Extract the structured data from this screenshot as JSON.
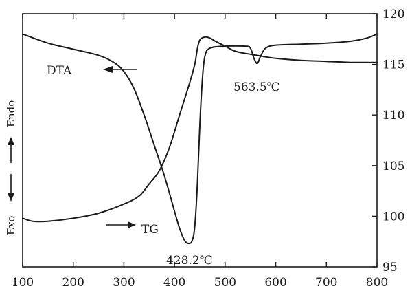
{
  "chart_data": {
    "type": "line",
    "title": "",
    "xlabel": "",
    "ylabel": "",
    "xlim": [
      100,
      800
    ],
    "x_ticks": [
      100,
      200,
      300,
      400,
      500,
      600,
      700,
      800
    ],
    "y_right_lim": [
      95,
      120
    ],
    "y_right_ticks": [
      95,
      100,
      105,
      110,
      115,
      120
    ],
    "left_axis_labels": {
      "endo": "Endo",
      "exo": "Exo"
    },
    "series": [
      {
        "name": "DTA",
        "axis": "left",
        "points": [
          [
            100,
            118.0
          ],
          [
            150,
            117.1
          ],
          [
            200,
            116.5
          ],
          [
            250,
            115.9
          ],
          [
            280,
            115.2
          ],
          [
            300,
            114.3
          ],
          [
            320,
            112.6
          ],
          [
            340,
            110.0
          ],
          [
            360,
            107.0
          ],
          [
            380,
            104.0
          ],
          [
            400,
            100.5
          ],
          [
            410,
            98.8
          ],
          [
            420,
            97.6
          ],
          [
            428.2,
            97.3
          ],
          [
            435,
            97.6
          ],
          [
            440,
            99.0
          ],
          [
            445,
            103.0
          ],
          [
            450,
            109.0
          ],
          [
            455,
            113.5
          ],
          [
            460,
            115.8
          ],
          [
            470,
            116.6
          ],
          [
            500,
            116.8
          ],
          [
            540,
            116.8
          ],
          [
            550,
            116.6
          ],
          [
            557,
            115.6
          ],
          [
            563.5,
            115.1
          ],
          [
            570,
            115.8
          ],
          [
            580,
            116.6
          ],
          [
            600,
            116.9
          ],
          [
            650,
            117.0
          ],
          [
            700,
            117.1
          ],
          [
            750,
            117.3
          ],
          [
            780,
            117.6
          ],
          [
            800,
            118.0
          ]
        ]
      },
      {
        "name": "TG",
        "axis": "right",
        "points": [
          [
            100,
            99.8
          ],
          [
            120,
            99.5
          ],
          [
            150,
            99.5
          ],
          [
            200,
            99.8
          ],
          [
            250,
            100.3
          ],
          [
            300,
            101.2
          ],
          [
            330,
            102.0
          ],
          [
            350,
            103.2
          ],
          [
            370,
            104.5
          ],
          [
            390,
            106.8
          ],
          [
            410,
            110.0
          ],
          [
            430,
            113.2
          ],
          [
            440,
            115.0
          ],
          [
            445,
            116.5
          ],
          [
            450,
            117.4
          ],
          [
            460,
            117.7
          ],
          [
            470,
            117.6
          ],
          [
            480,
            117.3
          ],
          [
            500,
            116.8
          ],
          [
            520,
            116.3
          ],
          [
            550,
            116.0
          ],
          [
            600,
            115.6
          ],
          [
            650,
            115.4
          ],
          [
            700,
            115.3
          ],
          [
            750,
            115.2
          ],
          [
            800,
            115.2
          ]
        ]
      }
    ],
    "annotations": [
      {
        "text": "DTA",
        "series": "DTA",
        "arrow": "left"
      },
      {
        "text": "TG",
        "series": "TG",
        "arrow": "right"
      },
      {
        "text": "428.2℃",
        "x": 428.2
      },
      {
        "text": "563.5℃",
        "x": 563.5
      }
    ],
    "grid": false
  }
}
